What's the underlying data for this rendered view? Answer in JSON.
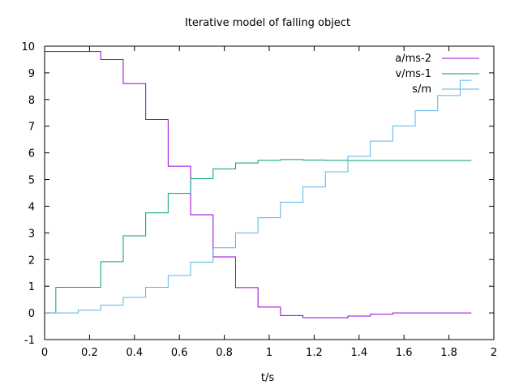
{
  "chart_data": {
    "type": "line",
    "title": "Iterative model of falling object",
    "xlabel": "t/s",
    "ylabel": "",
    "xlim": [
      0,
      2
    ],
    "ylim": [
      -1,
      10
    ],
    "xticks": [
      "0",
      "0.2",
      "0.4",
      "0.6",
      "0.8",
      "1",
      "1.2",
      "1.4",
      "1.6",
      "1.8",
      "2"
    ],
    "yticks": [
      "-1",
      "0",
      "1",
      "2",
      "3",
      "4",
      "5",
      "6",
      "7",
      "8",
      "9",
      "10"
    ],
    "legend_position": "top-right",
    "grid": false,
    "step_style": "histeps",
    "x": [
      0,
      0.1,
      0.2,
      0.3,
      0.4,
      0.5,
      0.6,
      0.7,
      0.8,
      0.9,
      1.0,
      1.1,
      1.2,
      1.3,
      1.4,
      1.5,
      1.6,
      1.7,
      1.8,
      1.9
    ],
    "series": [
      {
        "name": "a/ms-2",
        "color": "#9400d3",
        "values": [
          9.8,
          9.8,
          9.8,
          9.5,
          8.6,
          7.25,
          5.5,
          3.68,
          2.1,
          0.95,
          0.22,
          -0.1,
          -0.18,
          -0.18,
          -0.12,
          -0.05,
          0.0,
          0.0,
          0.0,
          0.0
        ]
      },
      {
        "name": "v/ms-1",
        "color": "#009e73",
        "values": [
          0,
          0.96,
          0.96,
          1.92,
          2.89,
          3.75,
          4.48,
          5.03,
          5.4,
          5.62,
          5.72,
          5.75,
          5.73,
          5.72,
          5.71,
          5.71,
          5.71,
          5.71,
          5.71,
          5.71
        ]
      },
      {
        "name": "s/m",
        "color": "#56b4e9",
        "values": [
          0,
          0,
          0.1,
          0.29,
          0.58,
          0.96,
          1.4,
          1.9,
          2.44,
          3.0,
          3.57,
          4.15,
          4.72,
          5.29,
          5.87,
          6.44,
          7.01,
          7.58,
          8.15,
          8.72
        ]
      }
    ]
  }
}
